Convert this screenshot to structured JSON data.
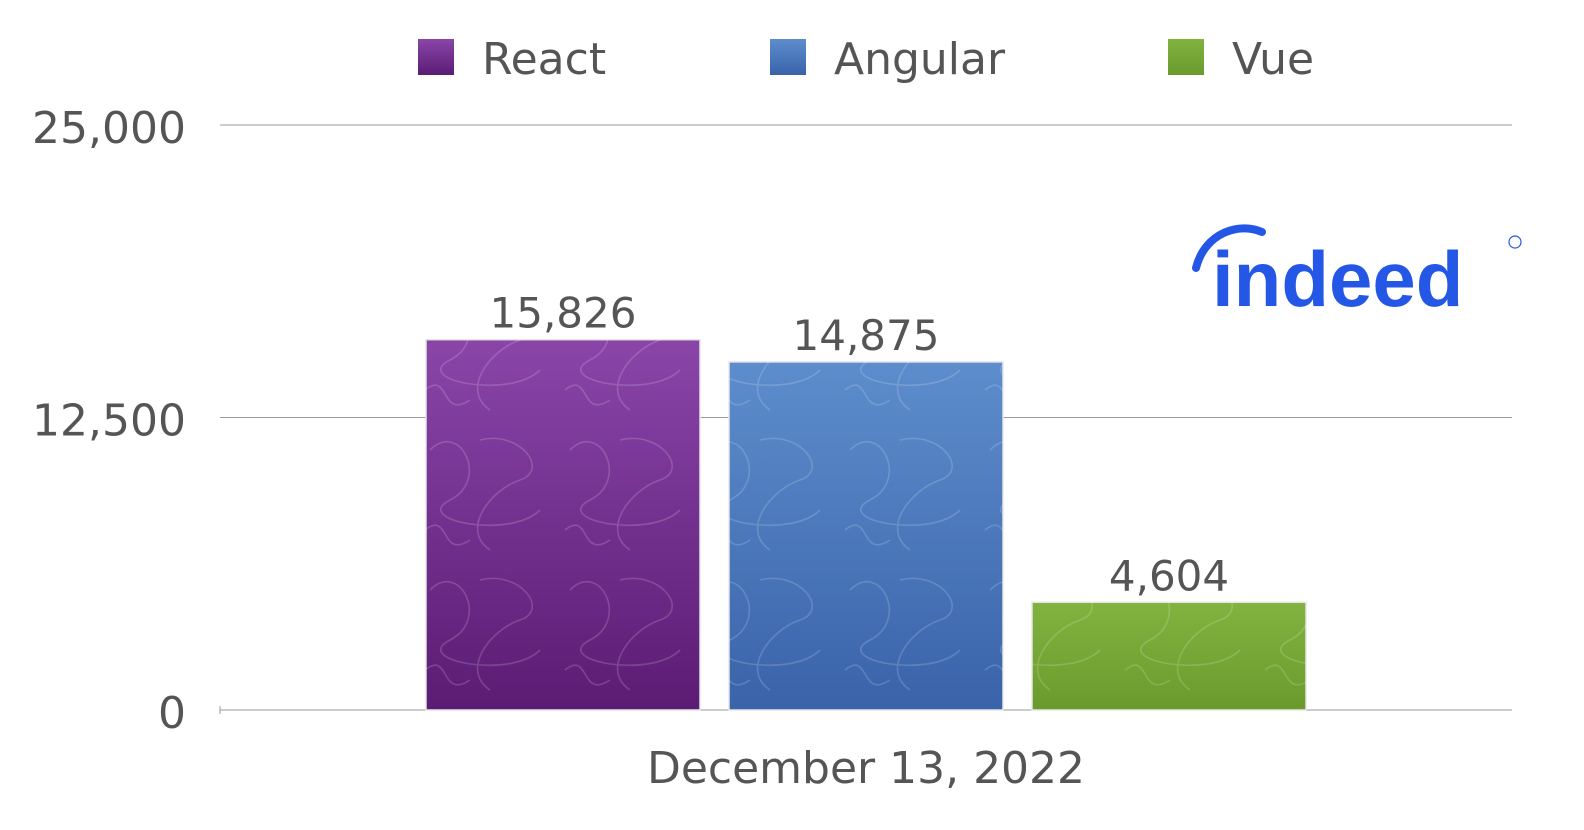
{
  "chart_data": {
    "type": "bar",
    "categories": [
      "December 13, 2022"
    ],
    "series": [
      {
        "name": "React",
        "values": [
          15826
        ],
        "label": "15,826",
        "color": "#7a3699"
      },
      {
        "name": "Angular",
        "values": [
          14875
        ],
        "label": "14,875",
        "color": "#4f7fc0"
      },
      {
        "name": "Vue",
        "values": [
          4604
        ],
        "label": "4,604",
        "color": "#78a536"
      }
    ],
    "ylim": [
      0,
      25000
    ],
    "yticks": [
      {
        "value": 0,
        "label": "0"
      },
      {
        "value": 12500,
        "label": "12,500"
      },
      {
        "value": 25000,
        "label": "25,000"
      }
    ],
    "grid": true,
    "legend_position": "top-center",
    "title": "",
    "xlabel": "",
    "ylabel": ""
  },
  "logo": {
    "text": "indeed",
    "color": "#2557e6",
    "icon": "indeed-logo"
  }
}
